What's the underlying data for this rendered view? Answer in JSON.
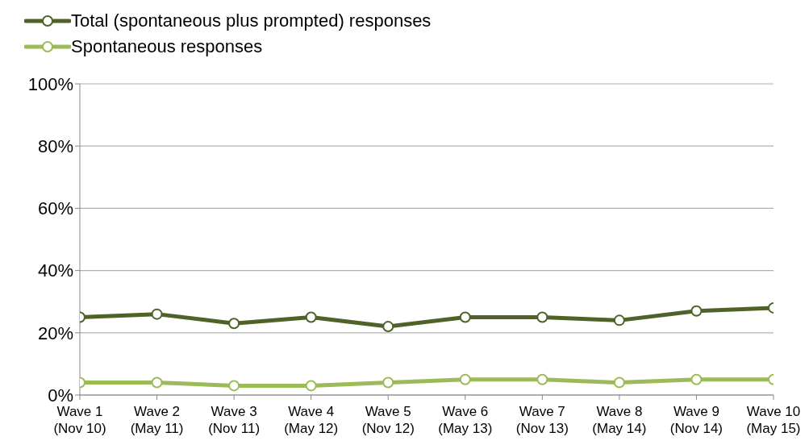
{
  "chart_data": {
    "type": "line",
    "categories": [
      "Wave 1\n(Nov 10)",
      "Wave 2\n(May 11)",
      "Wave 3\n(Nov 11)",
      "Wave 4\n(May 12)",
      "Wave 5\n(Nov 12)",
      "Wave 6\n(May 13)",
      "Wave 7\n(Nov 13)",
      "Wave 8\n(May 14)",
      "Wave 9\n(Nov 14)",
      "Wave 10\n(May 15)"
    ],
    "series": [
      {
        "name": "Total (spontaneous plus prompted) responses",
        "color": "#4f6228",
        "values": [
          25,
          26,
          23,
          25,
          22,
          25,
          25,
          24,
          27,
          28
        ]
      },
      {
        "name": "Spontaneous responses",
        "color": "#9bbb59",
        "values": [
          4,
          4,
          3,
          3,
          4,
          5,
          5,
          4,
          5,
          5
        ]
      }
    ],
    "ylim": [
      0,
      100
    ],
    "yticks": [
      {
        "value": 0,
        "label": "0%"
      },
      {
        "value": 20,
        "label": "20%"
      },
      {
        "value": 40,
        "label": "40%"
      },
      {
        "value": 60,
        "label": "60%"
      },
      {
        "value": 80,
        "label": "80%"
      },
      {
        "value": 100,
        "label": "100%"
      }
    ],
    "grid": "y",
    "legend": "top left",
    "marker": "circle",
    "line_style": "solid"
  }
}
